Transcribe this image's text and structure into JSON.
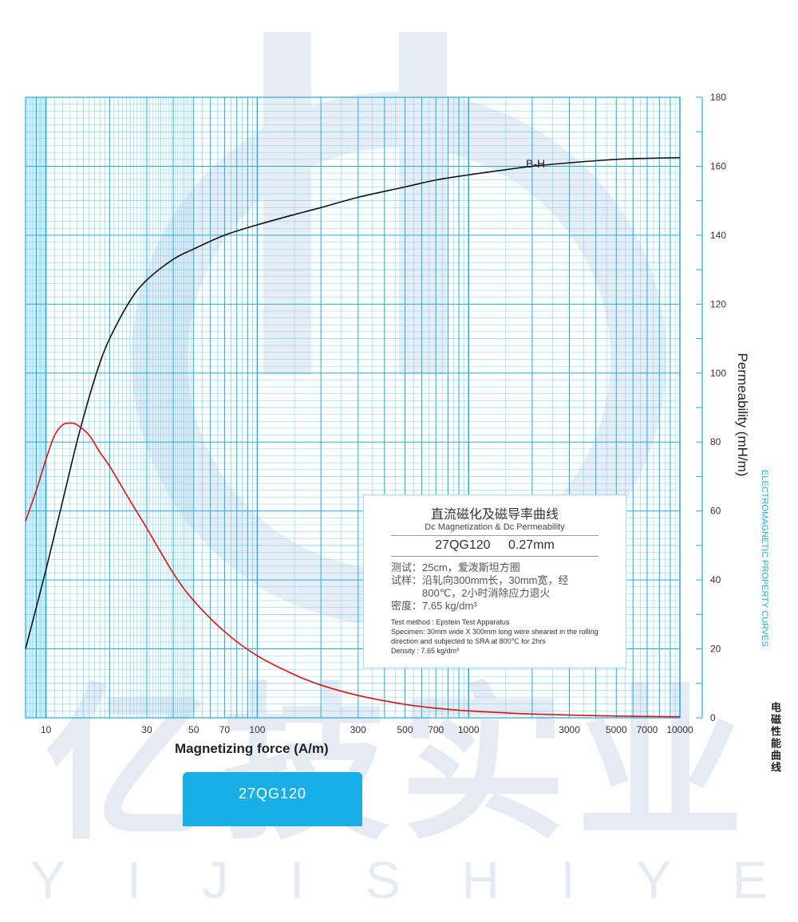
{
  "chart_data": {
    "type": "line",
    "title": "直流磁化及磁导率曲线",
    "subtitle": "Dc Magnetization & Dc Permeability",
    "xlabel": "Magnetizing force (A/m)",
    "ylabel": "Permeability (mH/m)",
    "xscale": "log",
    "xlim": [
      8,
      10000
    ],
    "ylim": [
      0,
      180
    ],
    "x_ticks": [
      10,
      30,
      50,
      70,
      100,
      300,
      500,
      700,
      1000,
      3000,
      5000,
      7000,
      10000
    ],
    "x_tick_labels": [
      "10",
      "30",
      "50",
      "70",
      "100",
      "300",
      "500",
      "700",
      "1000",
      "3000",
      "5000",
      "7000",
      "10000"
    ],
    "y_ticks": [
      0,
      20,
      40,
      60,
      80,
      100,
      120,
      140,
      160,
      180
    ],
    "y_tick_labels": [
      "0",
      "20",
      "40",
      "60",
      "80",
      "100",
      "120",
      "140",
      "160",
      "180"
    ],
    "grid": true,
    "legend": "none",
    "series": [
      {
        "name": "B-H",
        "color": "#111111",
        "points": [
          [
            8,
            20
          ],
          [
            10,
            43
          ],
          [
            12,
            63
          ],
          [
            14,
            80
          ],
          [
            16,
            93
          ],
          [
            18,
            103
          ],
          [
            20,
            110
          ],
          [
            25,
            121
          ],
          [
            30,
            127
          ],
          [
            40,
            133
          ],
          [
            50,
            136
          ],
          [
            70,
            140
          ],
          [
            100,
            143
          ],
          [
            150,
            146
          ],
          [
            200,
            148
          ],
          [
            300,
            151
          ],
          [
            500,
            154
          ],
          [
            700,
            156
          ],
          [
            1000,
            157.5
          ],
          [
            1500,
            159
          ],
          [
            2000,
            160
          ],
          [
            3000,
            161
          ],
          [
            5000,
            162
          ],
          [
            7000,
            162.3
          ],
          [
            10000,
            162.5
          ]
        ]
      },
      {
        "name": "",
        "color": "#e01010",
        "points": [
          [
            8,
            57
          ],
          [
            9,
            66
          ],
          [
            10,
            75
          ],
          [
            11,
            82
          ],
          [
            12,
            85
          ],
          [
            13,
            85.5
          ],
          [
            14,
            85
          ],
          [
            16,
            82
          ],
          [
            18,
            77
          ],
          [
            20,
            73
          ],
          [
            25,
            63
          ],
          [
            30,
            55
          ],
          [
            40,
            42
          ],
          [
            50,
            34
          ],
          [
            70,
            25
          ],
          [
            100,
            18
          ],
          [
            150,
            12.5
          ],
          [
            200,
            9.5
          ],
          [
            300,
            6.5
          ],
          [
            500,
            3.9
          ],
          [
            700,
            2.8
          ],
          [
            1000,
            2.0
          ],
          [
            2000,
            1.1
          ],
          [
            5000,
            0.5
          ],
          [
            10000,
            0.3
          ]
        ]
      }
    ]
  },
  "labels": {
    "bh_curve": "B-H",
    "side_en": "ELECTROMAGNETIC PROPERTY CURVES",
    "side_cn": "电磁性能曲线"
  },
  "info_box": {
    "title_cn": "直流磁化及磁导率曲线",
    "title_en": "Dc Magnetization & Dc Permeability",
    "grade_line": "27QG120 0.27mm",
    "test_key": "测试：",
    "test_val": "25cm，爱泼斯坦方圈",
    "sample_key": "试样：",
    "sample_val": "沿轧向300mm长，30mm宽，经800℃，2小时消除应力退火",
    "density_key": "密度：",
    "density_val": "7.65 kg/dm³",
    "en_method": "Test method : Epstein Test Apparatus",
    "en_specimen": "Specimen: 30mm wide X 300mm long were sheared in the rolling direction and subjected to SRA at 800℃ for 2hrs",
    "en_density": "Density : 7.65 kg/dm³"
  },
  "banner": {
    "text": "27QG120"
  },
  "watermark": {
    "han": "亿技实业",
    "latin": [
      "Y",
      "I",
      "J",
      "I",
      "S",
      "H",
      "I",
      "Y",
      "E"
    ]
  },
  "colors": {
    "grid": "#1aaee6",
    "grid_minor": "#6fcdef",
    "accent": "#1aaee6",
    "bh_line": "#111111",
    "perm_line": "#e01010"
  }
}
